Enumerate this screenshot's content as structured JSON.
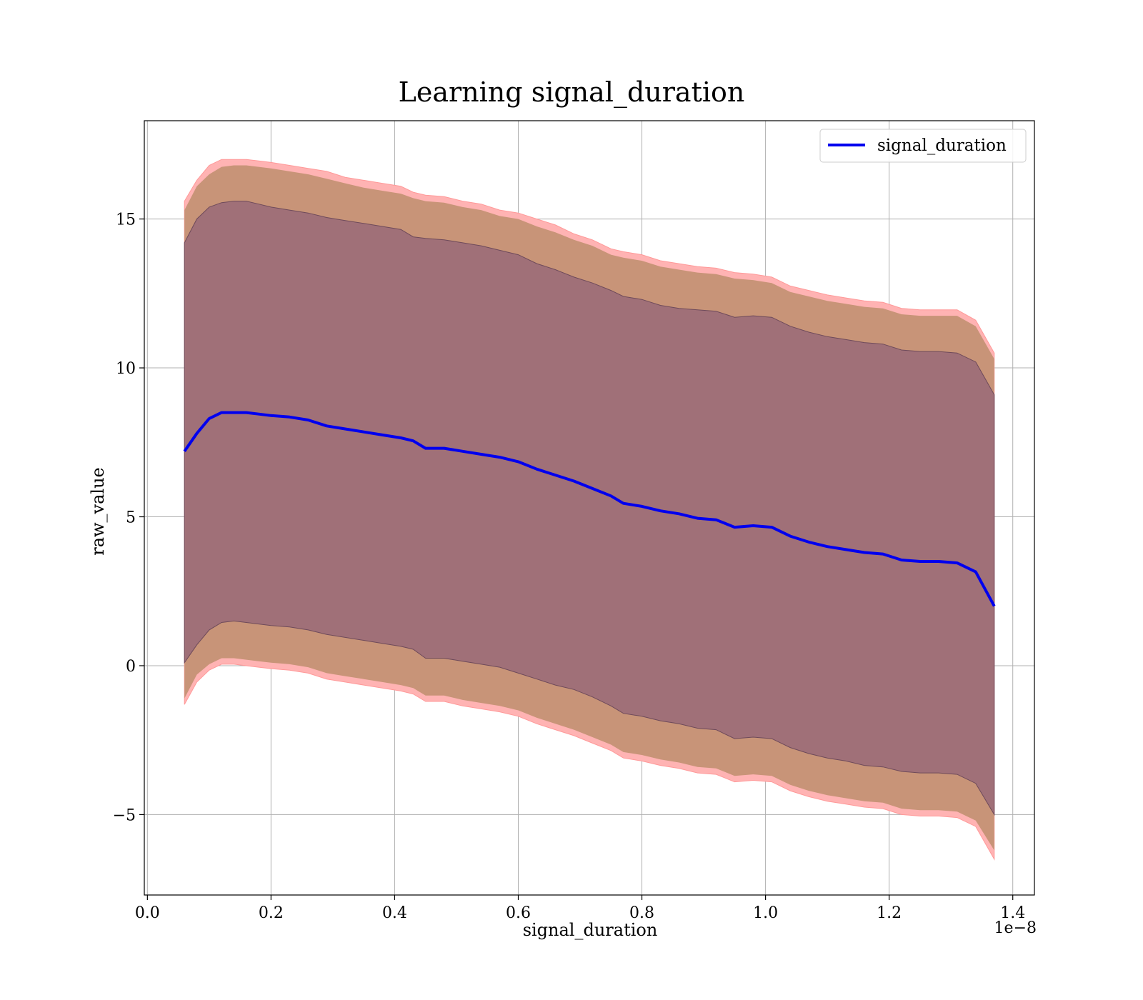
{
  "chart_data": {
    "type": "area",
    "title": "Learning signal_duration",
    "xlabel": "signal_duration",
    "ylabel": "raw_value",
    "x_offset_label": "1e−8",
    "xlim": [
      -0.005,
      1.435
    ],
    "ylim": [
      -7.7,
      18.3
    ],
    "x_ticks": [
      0.0,
      0.2,
      0.4,
      0.6,
      0.8,
      1.0,
      1.2,
      1.4
    ],
    "x_tick_labels": [
      "0.0",
      "0.2",
      "0.4",
      "0.6",
      "0.8",
      "1.0",
      "1.2",
      "1.4"
    ],
    "y_ticks": [
      -5,
      0,
      5,
      10,
      15
    ],
    "y_tick_labels": [
      "−5",
      "0",
      "5",
      "10",
      "15"
    ],
    "grid": true,
    "legend_position": "top-right",
    "colors": {
      "line": "#0000ee",
      "outer_band": "#ffb3b3",
      "outer_band_edge": "#ff9999",
      "middle_band": "#c89478",
      "inner_band": "#a07078",
      "inner_band_edge": "#6e4a5a"
    },
    "series": [
      {
        "name": "signal_duration",
        "role": "mean",
        "x": [
          0.06,
          0.08,
          0.1,
          0.12,
          0.14,
          0.16,
          0.18,
          0.2,
          0.23,
          0.26,
          0.29,
          0.32,
          0.35,
          0.38,
          0.41,
          0.43,
          0.45,
          0.48,
          0.51,
          0.54,
          0.57,
          0.6,
          0.63,
          0.66,
          0.69,
          0.72,
          0.75,
          0.77,
          0.8,
          0.83,
          0.86,
          0.89,
          0.92,
          0.95,
          0.98,
          1.01,
          1.04,
          1.07,
          1.1,
          1.13,
          1.16,
          1.19,
          1.22,
          1.25,
          1.28,
          1.31,
          1.34,
          1.37
        ],
        "y": [
          7.2,
          7.8,
          8.3,
          8.5,
          8.5,
          8.5,
          8.45,
          8.4,
          8.35,
          8.25,
          8.05,
          7.95,
          7.85,
          7.75,
          7.65,
          7.55,
          7.3,
          7.3,
          7.2,
          7.1,
          7.0,
          6.85,
          6.6,
          6.4,
          6.2,
          5.95,
          5.7,
          5.45,
          5.35,
          5.2,
          5.1,
          4.95,
          4.9,
          4.65,
          4.7,
          4.65,
          4.35,
          4.15,
          4.0,
          3.9,
          3.8,
          3.75,
          3.55,
          3.5,
          3.5,
          3.45,
          3.15,
          2.0
        ]
      }
    ],
    "bands": {
      "x": [
        0.06,
        0.08,
        0.1,
        0.12,
        0.14,
        0.16,
        0.18,
        0.2,
        0.23,
        0.26,
        0.29,
        0.32,
        0.35,
        0.38,
        0.41,
        0.43,
        0.45,
        0.48,
        0.51,
        0.54,
        0.57,
        0.6,
        0.63,
        0.66,
        0.69,
        0.72,
        0.75,
        0.77,
        0.8,
        0.83,
        0.86,
        0.89,
        0.92,
        0.95,
        0.98,
        1.01,
        1.04,
        1.07,
        1.1,
        1.13,
        1.16,
        1.19,
        1.22,
        1.25,
        1.28,
        1.31,
        1.34,
        1.37
      ],
      "outer_upper": [
        15.6,
        16.3,
        16.8,
        17.0,
        17.0,
        17.0,
        16.95,
        16.9,
        16.8,
        16.7,
        16.6,
        16.4,
        16.3,
        16.2,
        16.1,
        15.9,
        15.8,
        15.75,
        15.6,
        15.5,
        15.3,
        15.2,
        15.0,
        14.8,
        14.5,
        14.3,
        14.0,
        13.9,
        13.8,
        13.6,
        13.5,
        13.4,
        13.35,
        13.2,
        13.15,
        13.05,
        12.75,
        12.6,
        12.45,
        12.35,
        12.25,
        12.2,
        12.0,
        11.95,
        11.95,
        11.95,
        11.6,
        10.5
      ],
      "middle_upper": [
        15.3,
        16.1,
        16.5,
        16.75,
        16.8,
        16.8,
        16.75,
        16.7,
        16.6,
        16.5,
        16.35,
        16.2,
        16.05,
        15.95,
        15.85,
        15.7,
        15.6,
        15.55,
        15.4,
        15.3,
        15.1,
        15.0,
        14.75,
        14.55,
        14.3,
        14.1,
        13.8,
        13.7,
        13.6,
        13.4,
        13.3,
        13.2,
        13.15,
        13.0,
        12.95,
        12.85,
        12.55,
        12.4,
        12.25,
        12.15,
        12.05,
        12.0,
        11.8,
        11.75,
        11.75,
        11.75,
        11.4,
        10.3
      ],
      "inner_upper": [
        14.2,
        15.0,
        15.4,
        15.55,
        15.6,
        15.6,
        15.5,
        15.4,
        15.3,
        15.2,
        15.05,
        14.95,
        14.85,
        14.75,
        14.65,
        14.4,
        14.35,
        14.3,
        14.2,
        14.1,
        13.95,
        13.8,
        13.5,
        13.3,
        13.05,
        12.85,
        12.6,
        12.4,
        12.3,
        12.1,
        12.0,
        11.95,
        11.9,
        11.7,
        11.75,
        11.7,
        11.4,
        11.2,
        11.05,
        10.95,
        10.85,
        10.8,
        10.6,
        10.55,
        10.55,
        10.5,
        10.2,
        9.1
      ],
      "inner_lower": [
        0.1,
        0.7,
        1.2,
        1.45,
        1.5,
        1.45,
        1.4,
        1.35,
        1.3,
        1.2,
        1.05,
        0.95,
        0.85,
        0.75,
        0.65,
        0.55,
        0.25,
        0.25,
        0.15,
        0.05,
        -0.05,
        -0.25,
        -0.45,
        -0.65,
        -0.8,
        -1.05,
        -1.35,
        -1.6,
        -1.7,
        -1.85,
        -1.95,
        -2.1,
        -2.15,
        -2.45,
        -2.4,
        -2.45,
        -2.75,
        -2.95,
        -3.1,
        -3.2,
        -3.35,
        -3.4,
        -3.55,
        -3.6,
        -3.6,
        -3.65,
        -3.95,
        -5.0
      ],
      "middle_lower": [
        -1.1,
        -0.3,
        0.05,
        0.25,
        0.25,
        0.2,
        0.15,
        0.1,
        0.05,
        -0.05,
        -0.25,
        -0.35,
        -0.45,
        -0.55,
        -0.65,
        -0.75,
        -1.0,
        -1.0,
        -1.15,
        -1.25,
        -1.35,
        -1.5,
        -1.75,
        -1.95,
        -2.15,
        -2.4,
        -2.65,
        -2.9,
        -3.0,
        -3.15,
        -3.25,
        -3.4,
        -3.45,
        -3.7,
        -3.65,
        -3.7,
        -4.0,
        -4.2,
        -4.35,
        -4.45,
        -4.55,
        -4.6,
        -4.8,
        -4.85,
        -4.85,
        -4.9,
        -5.2,
        -6.2
      ],
      "outer_lower": [
        -1.3,
        -0.55,
        -0.15,
        0.05,
        0.05,
        0.0,
        -0.05,
        -0.1,
        -0.15,
        -0.25,
        -0.45,
        -0.55,
        -0.65,
        -0.75,
        -0.85,
        -0.95,
        -1.2,
        -1.2,
        -1.35,
        -1.45,
        -1.55,
        -1.7,
        -1.95,
        -2.15,
        -2.35,
        -2.6,
        -2.85,
        -3.1,
        -3.2,
        -3.35,
        -3.45,
        -3.6,
        -3.65,
        -3.9,
        -3.85,
        -3.9,
        -4.2,
        -4.4,
        -4.55,
        -4.65,
        -4.75,
        -4.8,
        -5.0,
        -5.05,
        -5.05,
        -5.1,
        -5.4,
        -6.5
      ]
    }
  }
}
